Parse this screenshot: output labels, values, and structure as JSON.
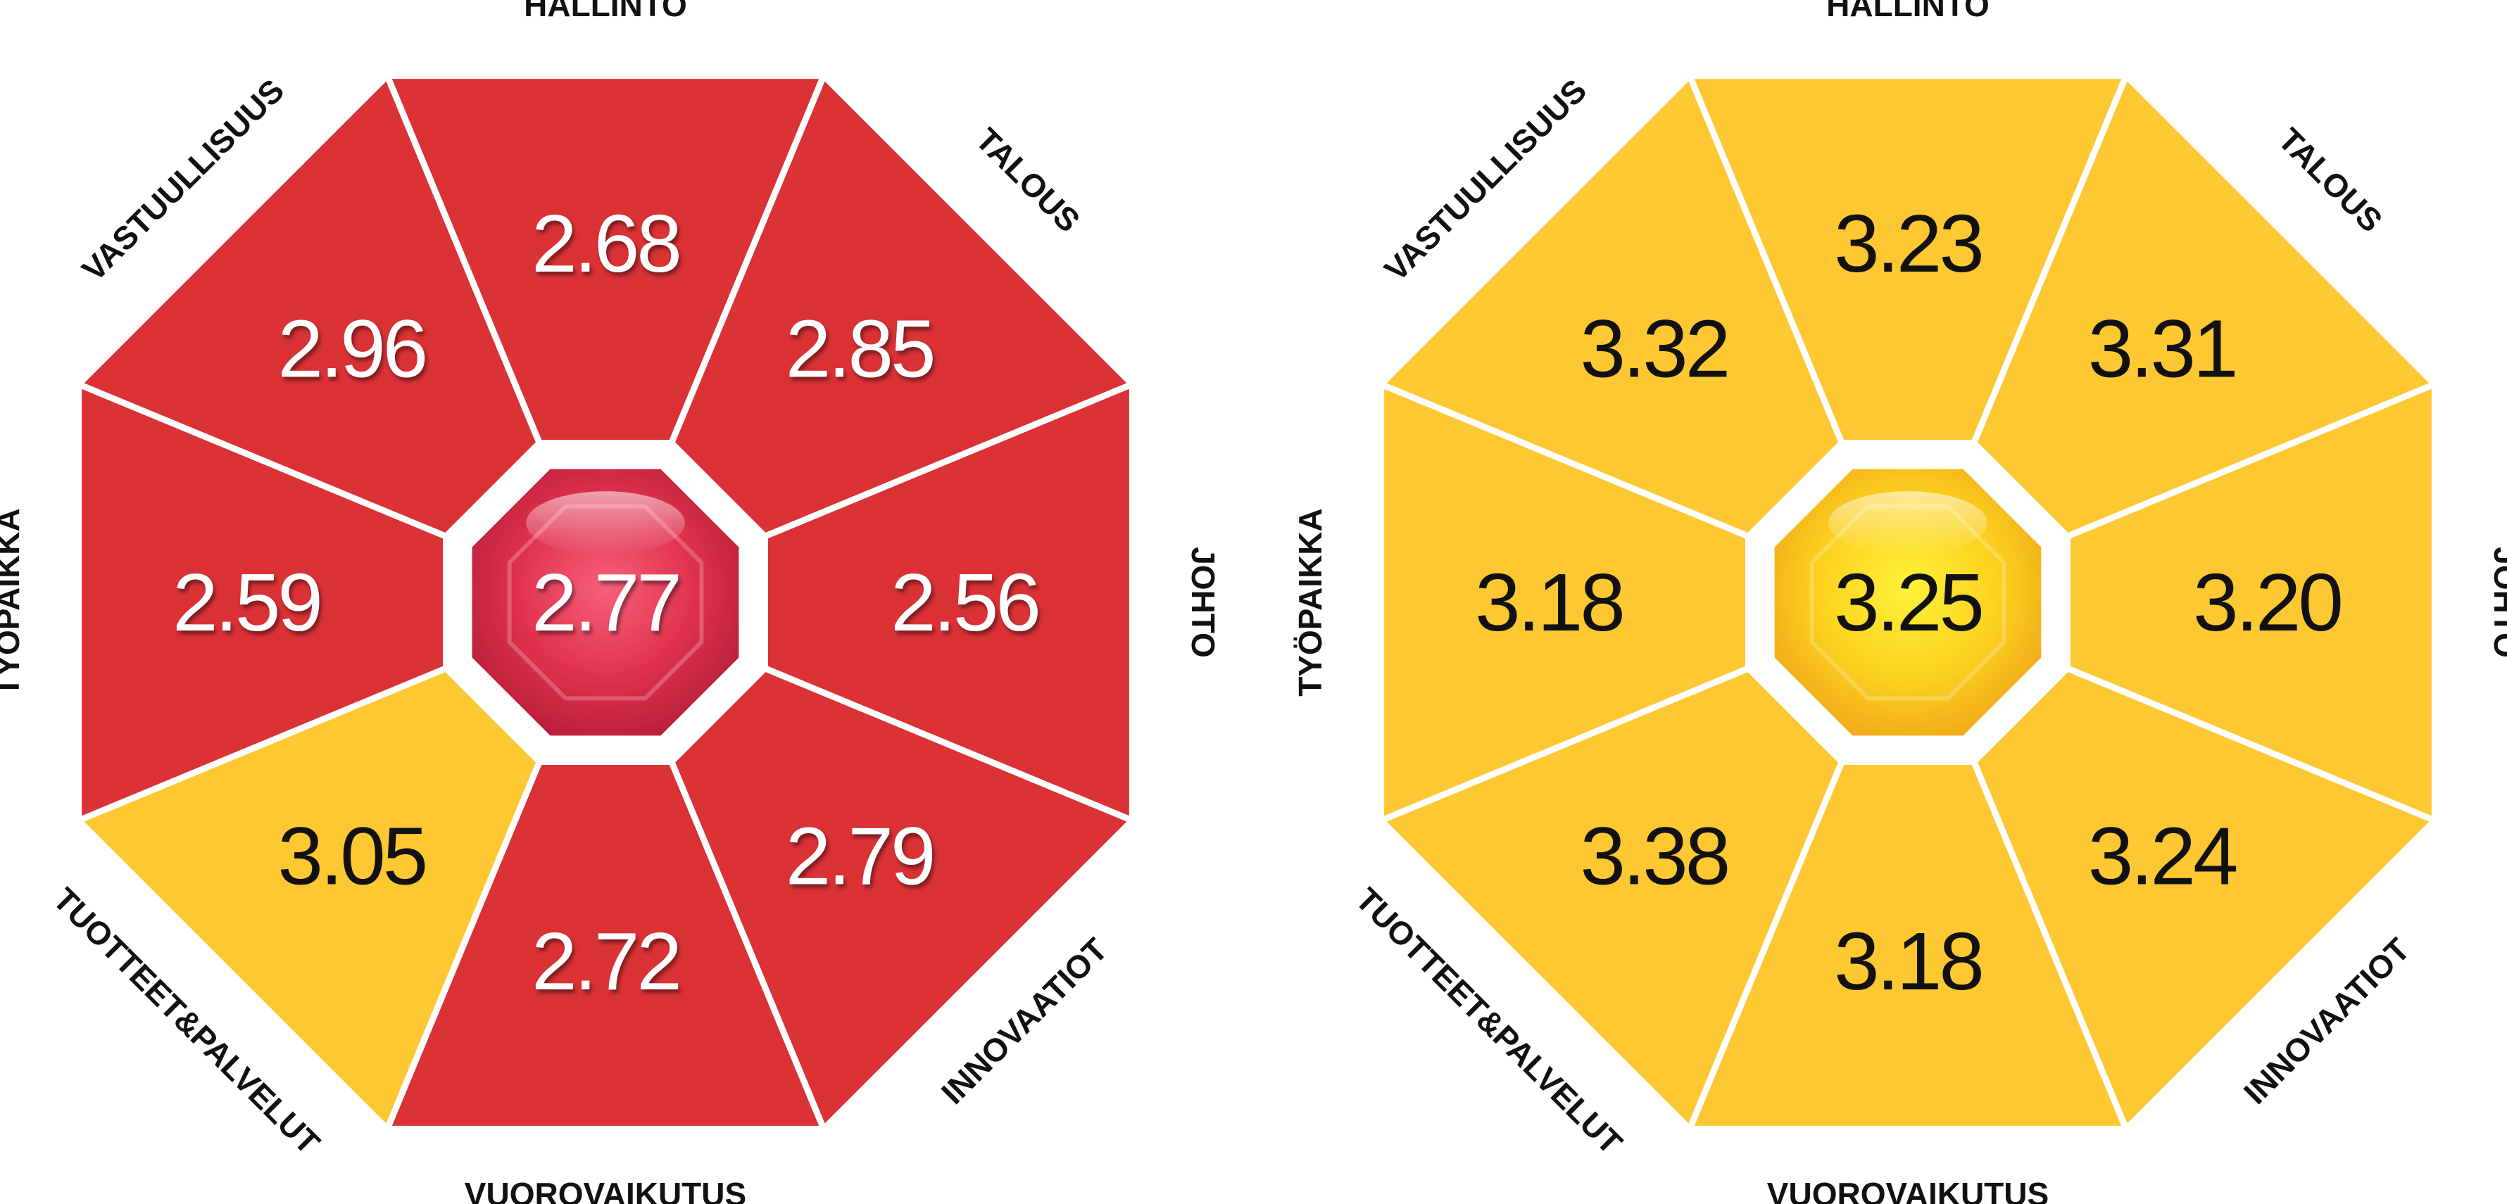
{
  "colors": {
    "red": "#db3236",
    "yellow": "#fdc832",
    "separator": "#ffffff",
    "label_text": "#111111"
  },
  "charts": [
    {
      "center_value": "2.77",
      "center_color": "red",
      "segments": [
        {
          "label": "HALLINTO",
          "value": "2.68",
          "color": "red"
        },
        {
          "label": "TALOUS",
          "value": "2.85",
          "color": "red"
        },
        {
          "label": "JOHTO",
          "value": "2.56",
          "color": "red"
        },
        {
          "label": "INNOVAATIOT",
          "value": "2.79",
          "color": "red"
        },
        {
          "label": "VUOROVAIKUTUS",
          "value": "2.72",
          "color": "red"
        },
        {
          "label": "TUOTTEET&PALVELUT",
          "value": "3.05",
          "color": "yellow"
        },
        {
          "label": "TYÖPAIKKA",
          "value": "2.59",
          "color": "red"
        },
        {
          "label": "VASTUULLISUUS",
          "value": "2.96",
          "color": "red"
        }
      ]
    },
    {
      "center_value": "3.25",
      "center_color": "yellow",
      "segments": [
        {
          "label": "HALLINTO",
          "value": "3.23",
          "color": "yellow"
        },
        {
          "label": "TALOUS",
          "value": "3.31",
          "color": "yellow"
        },
        {
          "label": "JOHTO",
          "value": "3.20",
          "color": "yellow"
        },
        {
          "label": "INNOVAATIOT",
          "value": "3.24",
          "color": "yellow"
        },
        {
          "label": "VUOROVAIKUTUS",
          "value": "3.18",
          "color": "yellow"
        },
        {
          "label": "TUOTTEET&PALVELUT",
          "value": "3.38",
          "color": "yellow"
        },
        {
          "label": "TYÖPAIKKA",
          "value": "3.18",
          "color": "yellow"
        },
        {
          "label": "VASTUULLISUUS",
          "value": "3.32",
          "color": "yellow"
        }
      ]
    }
  ]
}
